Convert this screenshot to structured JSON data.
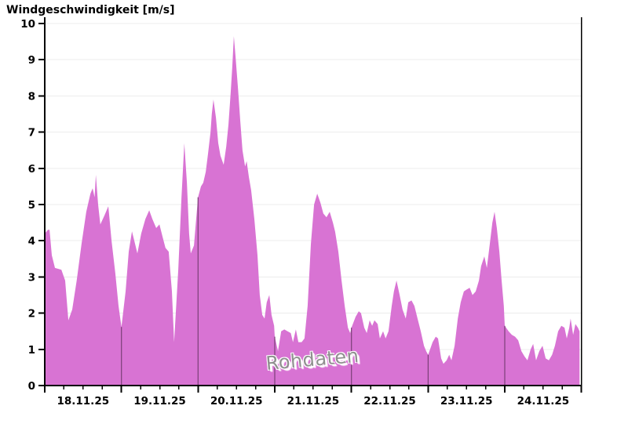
{
  "chart_data": {
    "type": "area",
    "title": "Windgeschwindigkeit [m/s]",
    "annotation": "Rohdaten",
    "xlabel": "",
    "ylabel": "Windgeschwindigkeit [m/s]",
    "ylim": [
      0,
      10
    ],
    "y_ticks": [
      0,
      1,
      2,
      3,
      4,
      5,
      6,
      7,
      8,
      9,
      10
    ],
    "x_tick_labels": [
      "18.11.25",
      "19.11.25",
      "20.11.25",
      "21.11.25",
      "22.11.25",
      "23.11.25",
      "24.11.25"
    ],
    "x_range_hours": [
      0,
      168
    ],
    "minor_tick_hours": 6,
    "grid": "horizontal",
    "legend": "none",
    "day_boundaries_hours": [
      24,
      48,
      72,
      96,
      120,
      144
    ],
    "colors": {
      "fill": "#d873d3",
      "day_line": "#7b4077",
      "grid": "#ececec",
      "axis": "#000000",
      "text": "#000000",
      "watermark": "#8f8f8f"
    },
    "series": [
      {
        "name": "Windgeschwindigkeit",
        "unit": "m/s",
        "points": [
          [
            0,
            4.2
          ],
          [
            1,
            4.3
          ],
          [
            1.5,
            4.3
          ],
          [
            2.2,
            3.6
          ],
          [
            3.2,
            3.25
          ],
          [
            5.2,
            3.2
          ],
          [
            6.4,
            2.9
          ],
          [
            7.4,
            1.8
          ],
          [
            8.6,
            2.1
          ],
          [
            10,
            2.9
          ],
          [
            11.5,
            3.9
          ],
          [
            13,
            4.8
          ],
          [
            14.3,
            5.3
          ],
          [
            15,
            5.45
          ],
          [
            15.6,
            5.2
          ],
          [
            16,
            5.82
          ],
          [
            16.7,
            5.0
          ],
          [
            17.4,
            4.45
          ],
          [
            18.7,
            4.7
          ],
          [
            19.9,
            4.95
          ],
          [
            20.9,
            4.0
          ],
          [
            22.1,
            3.1
          ],
          [
            23.1,
            2.2
          ],
          [
            24,
            1.62
          ],
          [
            25.3,
            2.6
          ],
          [
            26.3,
            3.7
          ],
          [
            27.3,
            4.26
          ],
          [
            28.3,
            3.9
          ],
          [
            29,
            3.65
          ],
          [
            30.2,
            4.2
          ],
          [
            31.5,
            4.6
          ],
          [
            32.7,
            4.84
          ],
          [
            33.7,
            4.6
          ],
          [
            34.9,
            4.35
          ],
          [
            35.9,
            4.45
          ],
          [
            36.9,
            4.1
          ],
          [
            37.8,
            3.8
          ],
          [
            38.8,
            3.7
          ],
          [
            39.8,
            2.6
          ],
          [
            40.5,
            1.2
          ],
          [
            41.8,
            3.2
          ],
          [
            42.8,
            5.2
          ],
          [
            43.7,
            6.69
          ],
          [
            44.5,
            5.6
          ],
          [
            45.2,
            4.2
          ],
          [
            45.7,
            3.65
          ],
          [
            46.7,
            3.87
          ],
          [
            47.4,
            4.6
          ],
          [
            48,
            5.2
          ],
          [
            48.9,
            5.5
          ],
          [
            49.6,
            5.6
          ],
          [
            50.4,
            5.9
          ],
          [
            51.1,
            6.4
          ],
          [
            51.9,
            7.0
          ],
          [
            52.3,
            7.5
          ],
          [
            52.8,
            7.9
          ],
          [
            53.6,
            7.4
          ],
          [
            54.3,
            6.7
          ],
          [
            55,
            6.35
          ],
          [
            56,
            6.1
          ],
          [
            56.8,
            6.6
          ],
          [
            57.5,
            7.2
          ],
          [
            58.2,
            8.1
          ],
          [
            58.7,
            8.8
          ],
          [
            59.2,
            9.65
          ],
          [
            59.7,
            9.1
          ],
          [
            60.5,
            8.2
          ],
          [
            61.2,
            7.3
          ],
          [
            61.9,
            6.5
          ],
          [
            62.7,
            6.05
          ],
          [
            63.2,
            6.2
          ],
          [
            63.9,
            5.75
          ],
          [
            64.6,
            5.4
          ],
          [
            65.6,
            4.6
          ],
          [
            66.6,
            3.6
          ],
          [
            67.3,
            2.5
          ],
          [
            68.1,
            1.95
          ],
          [
            68.8,
            1.85
          ],
          [
            69.5,
            2.3
          ],
          [
            70.3,
            2.5
          ],
          [
            71,
            1.95
          ],
          [
            71.8,
            1.65
          ],
          [
            72,
            1.35
          ],
          [
            73,
            0.95
          ],
          [
            74,
            1.5
          ],
          [
            75,
            1.55
          ],
          [
            76,
            1.5
          ],
          [
            77,
            1.45
          ],
          [
            77.7,
            1.2
          ],
          [
            78.6,
            1.55
          ],
          [
            79.4,
            1.2
          ],
          [
            80.4,
            1.2
          ],
          [
            81.3,
            1.3
          ],
          [
            82.3,
            2.2
          ],
          [
            83.3,
            3.9
          ],
          [
            84.3,
            5.0
          ],
          [
            85.3,
            5.3
          ],
          [
            86.3,
            5.05
          ],
          [
            87.2,
            4.75
          ],
          [
            88.2,
            4.65
          ],
          [
            89.2,
            4.8
          ],
          [
            90.2,
            4.5
          ],
          [
            90.9,
            4.25
          ],
          [
            91.9,
            3.7
          ],
          [
            92.9,
            2.9
          ],
          [
            93.9,
            2.2
          ],
          [
            94.9,
            1.6
          ],
          [
            95.6,
            1.45
          ],
          [
            96,
            1.6
          ],
          [
            97.3,
            1.9
          ],
          [
            98.3,
            2.05
          ],
          [
            99,
            2.0
          ],
          [
            100,
            1.6
          ],
          [
            100.8,
            1.45
          ],
          [
            101.7,
            1.8
          ],
          [
            102.5,
            1.65
          ],
          [
            103.2,
            1.8
          ],
          [
            104.2,
            1.7
          ],
          [
            104.9,
            1.3
          ],
          [
            105.9,
            1.5
          ],
          [
            106.7,
            1.3
          ],
          [
            107.6,
            1.5
          ],
          [
            108.6,
            2.2
          ],
          [
            109.3,
            2.6
          ],
          [
            110.1,
            2.9
          ],
          [
            111.1,
            2.5
          ],
          [
            112,
            2.1
          ],
          [
            113,
            1.85
          ],
          [
            113.8,
            2.3
          ],
          [
            114.8,
            2.35
          ],
          [
            115.7,
            2.2
          ],
          [
            116.7,
            1.85
          ],
          [
            117.7,
            1.5
          ],
          [
            118.7,
            1.1
          ],
          [
            119.4,
            0.95
          ],
          [
            120,
            0.85
          ],
          [
            121.4,
            1.2
          ],
          [
            122.4,
            1.35
          ],
          [
            123.1,
            1.3
          ],
          [
            124.1,
            0.75
          ],
          [
            124.8,
            0.6
          ],
          [
            125.8,
            0.7
          ],
          [
            126.6,
            0.85
          ],
          [
            127.3,
            0.7
          ],
          [
            128.3,
            1.1
          ],
          [
            129.3,
            1.85
          ],
          [
            130.2,
            2.3
          ],
          [
            131.2,
            2.6
          ],
          [
            132,
            2.65
          ],
          [
            133,
            2.7
          ],
          [
            133.9,
            2.5
          ],
          [
            134.9,
            2.6
          ],
          [
            135.9,
            2.9
          ],
          [
            136.6,
            3.3
          ],
          [
            137.6,
            3.57
          ],
          [
            138.4,
            3.25
          ],
          [
            139.3,
            3.9
          ],
          [
            140.1,
            4.5
          ],
          [
            140.8,
            4.8
          ],
          [
            141.5,
            4.35
          ],
          [
            142.3,
            3.7
          ],
          [
            143,
            2.9
          ],
          [
            143.7,
            2.2
          ],
          [
            144,
            1.65
          ],
          [
            145.2,
            1.5
          ],
          [
            146.2,
            1.4
          ],
          [
            147.2,
            1.35
          ],
          [
            148.2,
            1.25
          ],
          [
            149.2,
            0.95
          ],
          [
            150.2,
            0.8
          ],
          [
            151.1,
            0.7
          ],
          [
            152.1,
            1.0
          ],
          [
            152.9,
            1.15
          ],
          [
            153.8,
            0.7
          ],
          [
            154.8,
            0.95
          ],
          [
            155.8,
            1.1
          ],
          [
            156.8,
            0.75
          ],
          [
            157.8,
            0.7
          ],
          [
            158.8,
            0.85
          ],
          [
            159.7,
            1.1
          ],
          [
            160.7,
            1.5
          ],
          [
            161.7,
            1.65
          ],
          [
            162.7,
            1.6
          ],
          [
            163.4,
            1.3
          ],
          [
            164.2,
            1.6
          ],
          [
            164.6,
            1.85
          ],
          [
            165.4,
            1.4
          ],
          [
            166.1,
            1.7
          ],
          [
            166.9,
            1.6
          ],
          [
            167.4,
            1.5
          ]
        ]
      }
    ]
  }
}
